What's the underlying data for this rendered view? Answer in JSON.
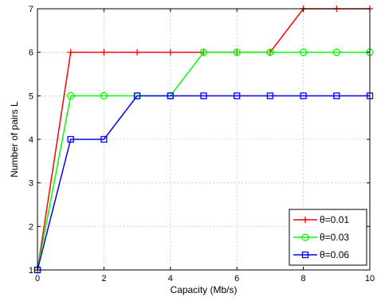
{
  "chart_data": {
    "type": "line",
    "title": "",
    "xlabel": "Capacity (Mb/s)",
    "ylabel": "Number of pairs L",
    "xlim": [
      0,
      10
    ],
    "ylim": [
      1,
      7
    ],
    "xticks": [
      0,
      2,
      4,
      6,
      8,
      10
    ],
    "yticks": [
      1,
      2,
      3,
      4,
      5,
      6,
      7
    ],
    "grid": true,
    "legend_position": "bottom-right",
    "x": [
      0,
      1,
      2,
      3,
      4,
      5,
      6,
      7,
      8,
      9,
      10
    ],
    "series": [
      {
        "name": "θ=0.01",
        "color": "#ff0000",
        "marker": "plus",
        "values": [
          1,
          6,
          6,
          6,
          6,
          6,
          6,
          6,
          7,
          7,
          7
        ]
      },
      {
        "name": "θ=0.03",
        "color": "#00ff00",
        "marker": "circle",
        "values": [
          1,
          5,
          5,
          5,
          5,
          6,
          6,
          6,
          6,
          6,
          6
        ]
      },
      {
        "name": "θ=0.06",
        "color": "#0000ff",
        "marker": "square",
        "values": [
          1,
          4,
          4,
          5,
          5,
          5,
          5,
          5,
          5,
          5,
          5
        ]
      }
    ]
  }
}
